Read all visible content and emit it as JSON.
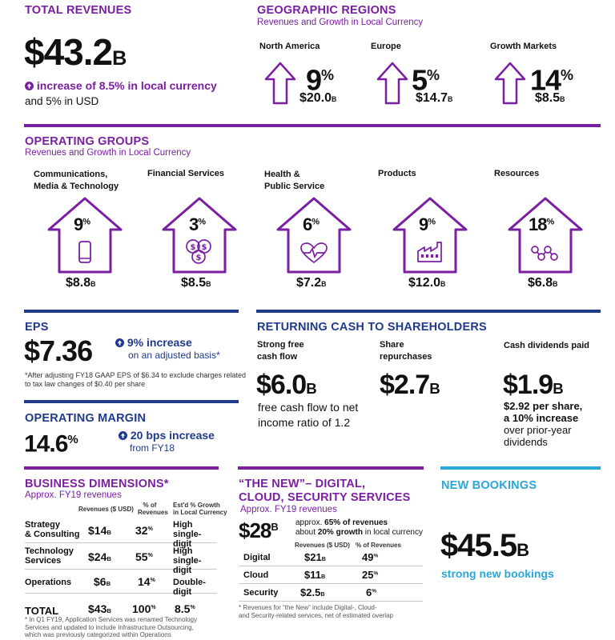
{
  "colors": {
    "purple": "#7b1fa2",
    "navy": "#1f3a8a",
    "light_blue": "#2aa6d9",
    "text": "#111111"
  },
  "total_revenues": {
    "heading": "TOTAL REVENUES",
    "value": "$43.2",
    "unit": "B",
    "increase": "increase of 8.5% in local currency",
    "usd": "and 5% in USD"
  },
  "geo": {
    "heading": "GEOGRAPHIC REGIONS",
    "subheading": "Revenues and Growth in Local Currency",
    "regions": [
      {
        "name": "North America",
        "pct": "9",
        "value": "$20.0",
        "unit": "B"
      },
      {
        "name": "Europe",
        "pct": "5",
        "value": "$14.7",
        "unit": "B"
      },
      {
        "name": "Growth Markets",
        "pct": "14",
        "value": "$8.5",
        "unit": "B"
      }
    ],
    "pct_sign": "%"
  },
  "operating_groups": {
    "heading": "OPERATING GROUPS",
    "subheading": "Revenues and Growth in Local Currency",
    "groups": [
      {
        "name_line1": "Communications,",
        "name_line2": "Media & Technology",
        "pct": "9",
        "value": "$8.8",
        "unit": "B",
        "icon": "mobile-phone-icon"
      },
      {
        "name_line1": "Financial Services",
        "name_line2": "",
        "pct": "3",
        "value": "$8.5",
        "unit": "B",
        "icon": "dollar-coins-icon"
      },
      {
        "name_line1": "Health &",
        "name_line2": "Public Service",
        "pct": "6",
        "value": "$7.2",
        "unit": "B",
        "icon": "heart-pulse-icon"
      },
      {
        "name_line1": "Products",
        "name_line2": "",
        "pct": "9",
        "value": "$12.0",
        "unit": "B",
        "icon": "factory-icon"
      },
      {
        "name_line1": "Resources",
        "name_line2": "",
        "pct": "18",
        "value": "$6.8",
        "unit": "B",
        "icon": "molecule-icon"
      }
    ],
    "pct_sign": "%"
  },
  "eps": {
    "heading": "EPS",
    "value": "$7.36",
    "increase": "9% increase",
    "basis": "on an adjusted basis*",
    "footnote_line1": "*After adjusting FY18 GAAP EPS of $6.34 to exclude charges related",
    "footnote_line2": "to tax law changes of $0.40 per share"
  },
  "operating_margin": {
    "heading": "OPERATING MARGIN",
    "value": "14.6",
    "pct_sign": "%",
    "increase": "20 bps increase",
    "from": "from FY18"
  },
  "cash": {
    "heading": "RETURNING CASH TO SHAREHOLDERS",
    "free_cash": {
      "label_line1": "Strong free",
      "label_line2": "cash flow",
      "value": "$6.0",
      "unit": "B",
      "desc_line1": "free cash flow to net",
      "desc_line2": "income ratio of 1.2"
    },
    "repurchases": {
      "label_line1": "Share",
      "label_line2": "repurchases",
      "value": "$2.7",
      "unit": "B"
    },
    "dividends": {
      "label": "Cash dividends paid",
      "value": "$1.9",
      "unit": "B",
      "desc_bold_line1": "$2.92 per share,",
      "desc_bold_line2": "a 10% increase",
      "desc_line3": "over prior-year",
      "desc_line4": "dividends"
    }
  },
  "business_dimensions": {
    "heading": "BUSINESS DIMENSIONS*",
    "subheading": "Approx. FY19 revenues",
    "col_revenues": "Revenues ($ USD)",
    "col_pct_line1": "% of",
    "col_pct_line2": "Revenues",
    "col_growth_line1": "Est'd % Growth",
    "col_growth_line2": "in Local Currency",
    "rows": [
      {
        "name_line1": "Strategy",
        "name_line2": "& Consulting",
        "rev": "$14",
        "unit": "B",
        "pct": "32",
        "growth_line1": "High",
        "growth_line2": "single-digit"
      },
      {
        "name_line1": "Technology",
        "name_line2": "Services",
        "rev": "$24",
        "unit": "B",
        "pct": "55",
        "growth_line1": "High",
        "growth_line2": "single-digit"
      },
      {
        "name_line1": "Operations",
        "name_line2": "",
        "rev": "$6",
        "unit": "B",
        "pct": "14",
        "growth_line1": "Double-digit",
        "growth_line2": ""
      }
    ],
    "total": {
      "name": "TOTAL",
      "rev": "$43",
      "unit": "B",
      "pct": "100",
      "growth": "8.5"
    },
    "pct_sign": "%",
    "footnote_line1": "* In Q1 FY19, Application Services was renamed Technology",
    "footnote_line2": "Services and updated to include Infrastructure Outsourcing,",
    "footnote_line3": "which was previously categorized within Operations"
  },
  "the_new": {
    "heading_line1": "“THE NEW”– DIGITAL,",
    "heading_line2": "CLOUD, SECURITY SERVICES",
    "subheading": "Approx. FY19 revenues",
    "value": "$28",
    "unit": "B",
    "approx_prefix": "approx.",
    "approx_bold": "65% of revenues",
    "growth_prefix": "about",
    "growth_bold": "20% growth",
    "growth_suffix": "in local currency",
    "col_revenues": "Revenues ($ USD)",
    "col_pct": "% of Revenues",
    "rows": [
      {
        "name": "Digital",
        "rev": "$21",
        "unit": "B",
        "pct": "49"
      },
      {
        "name": "Cloud",
        "rev": "$11",
        "unit": "B",
        "pct": "25"
      },
      {
        "name": "Security",
        "rev": "$2.5",
        "unit": "B",
        "pct": "6"
      }
    ],
    "pct_sign": "%",
    "footnote_line1": "* Revenues for “the New” include Digital-, Cloud-",
    "footnote_line2": "and Security-related services, net of estimated overlap"
  },
  "new_bookings": {
    "heading": "NEW BOOKINGS",
    "value": "$45.5",
    "unit": "B",
    "desc": "strong new bookings"
  }
}
